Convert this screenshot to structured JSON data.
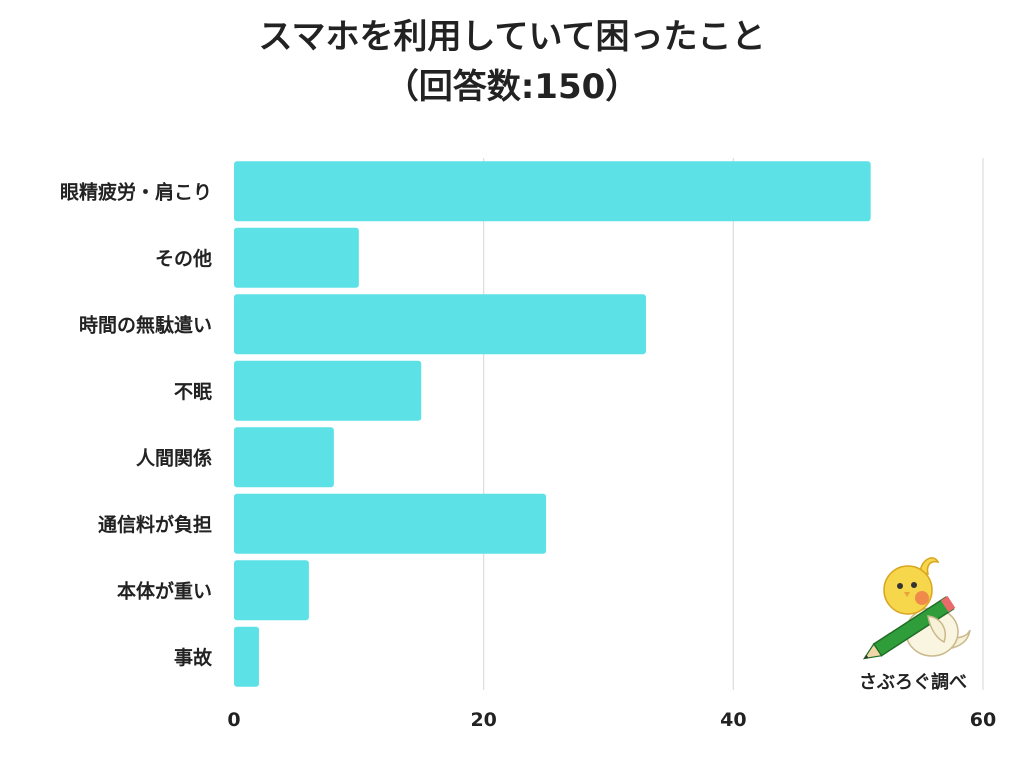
{
  "chart_data": {
    "type": "bar",
    "orientation": "horizontal",
    "title": "スマホを利用していて困ったこと",
    "subtitle": "（回答数:150）",
    "categories": [
      "眼精疲労・肩こり",
      "その他",
      "時間の無駄遣い",
      "不眠",
      "人間関係",
      "通信料が負担",
      "本体が重い",
      "事故"
    ],
    "values": [
      51,
      10,
      33,
      15,
      8,
      25,
      6,
      2
    ],
    "xlim": [
      0,
      60
    ],
    "xticks": [
      "0",
      "20",
      "40",
      "60"
    ],
    "grid": true,
    "bar_color": "#5ce1e6"
  },
  "credit": "さぶろぐ調べ",
  "mascot_icon": "cockatiel-with-pencil-icon"
}
